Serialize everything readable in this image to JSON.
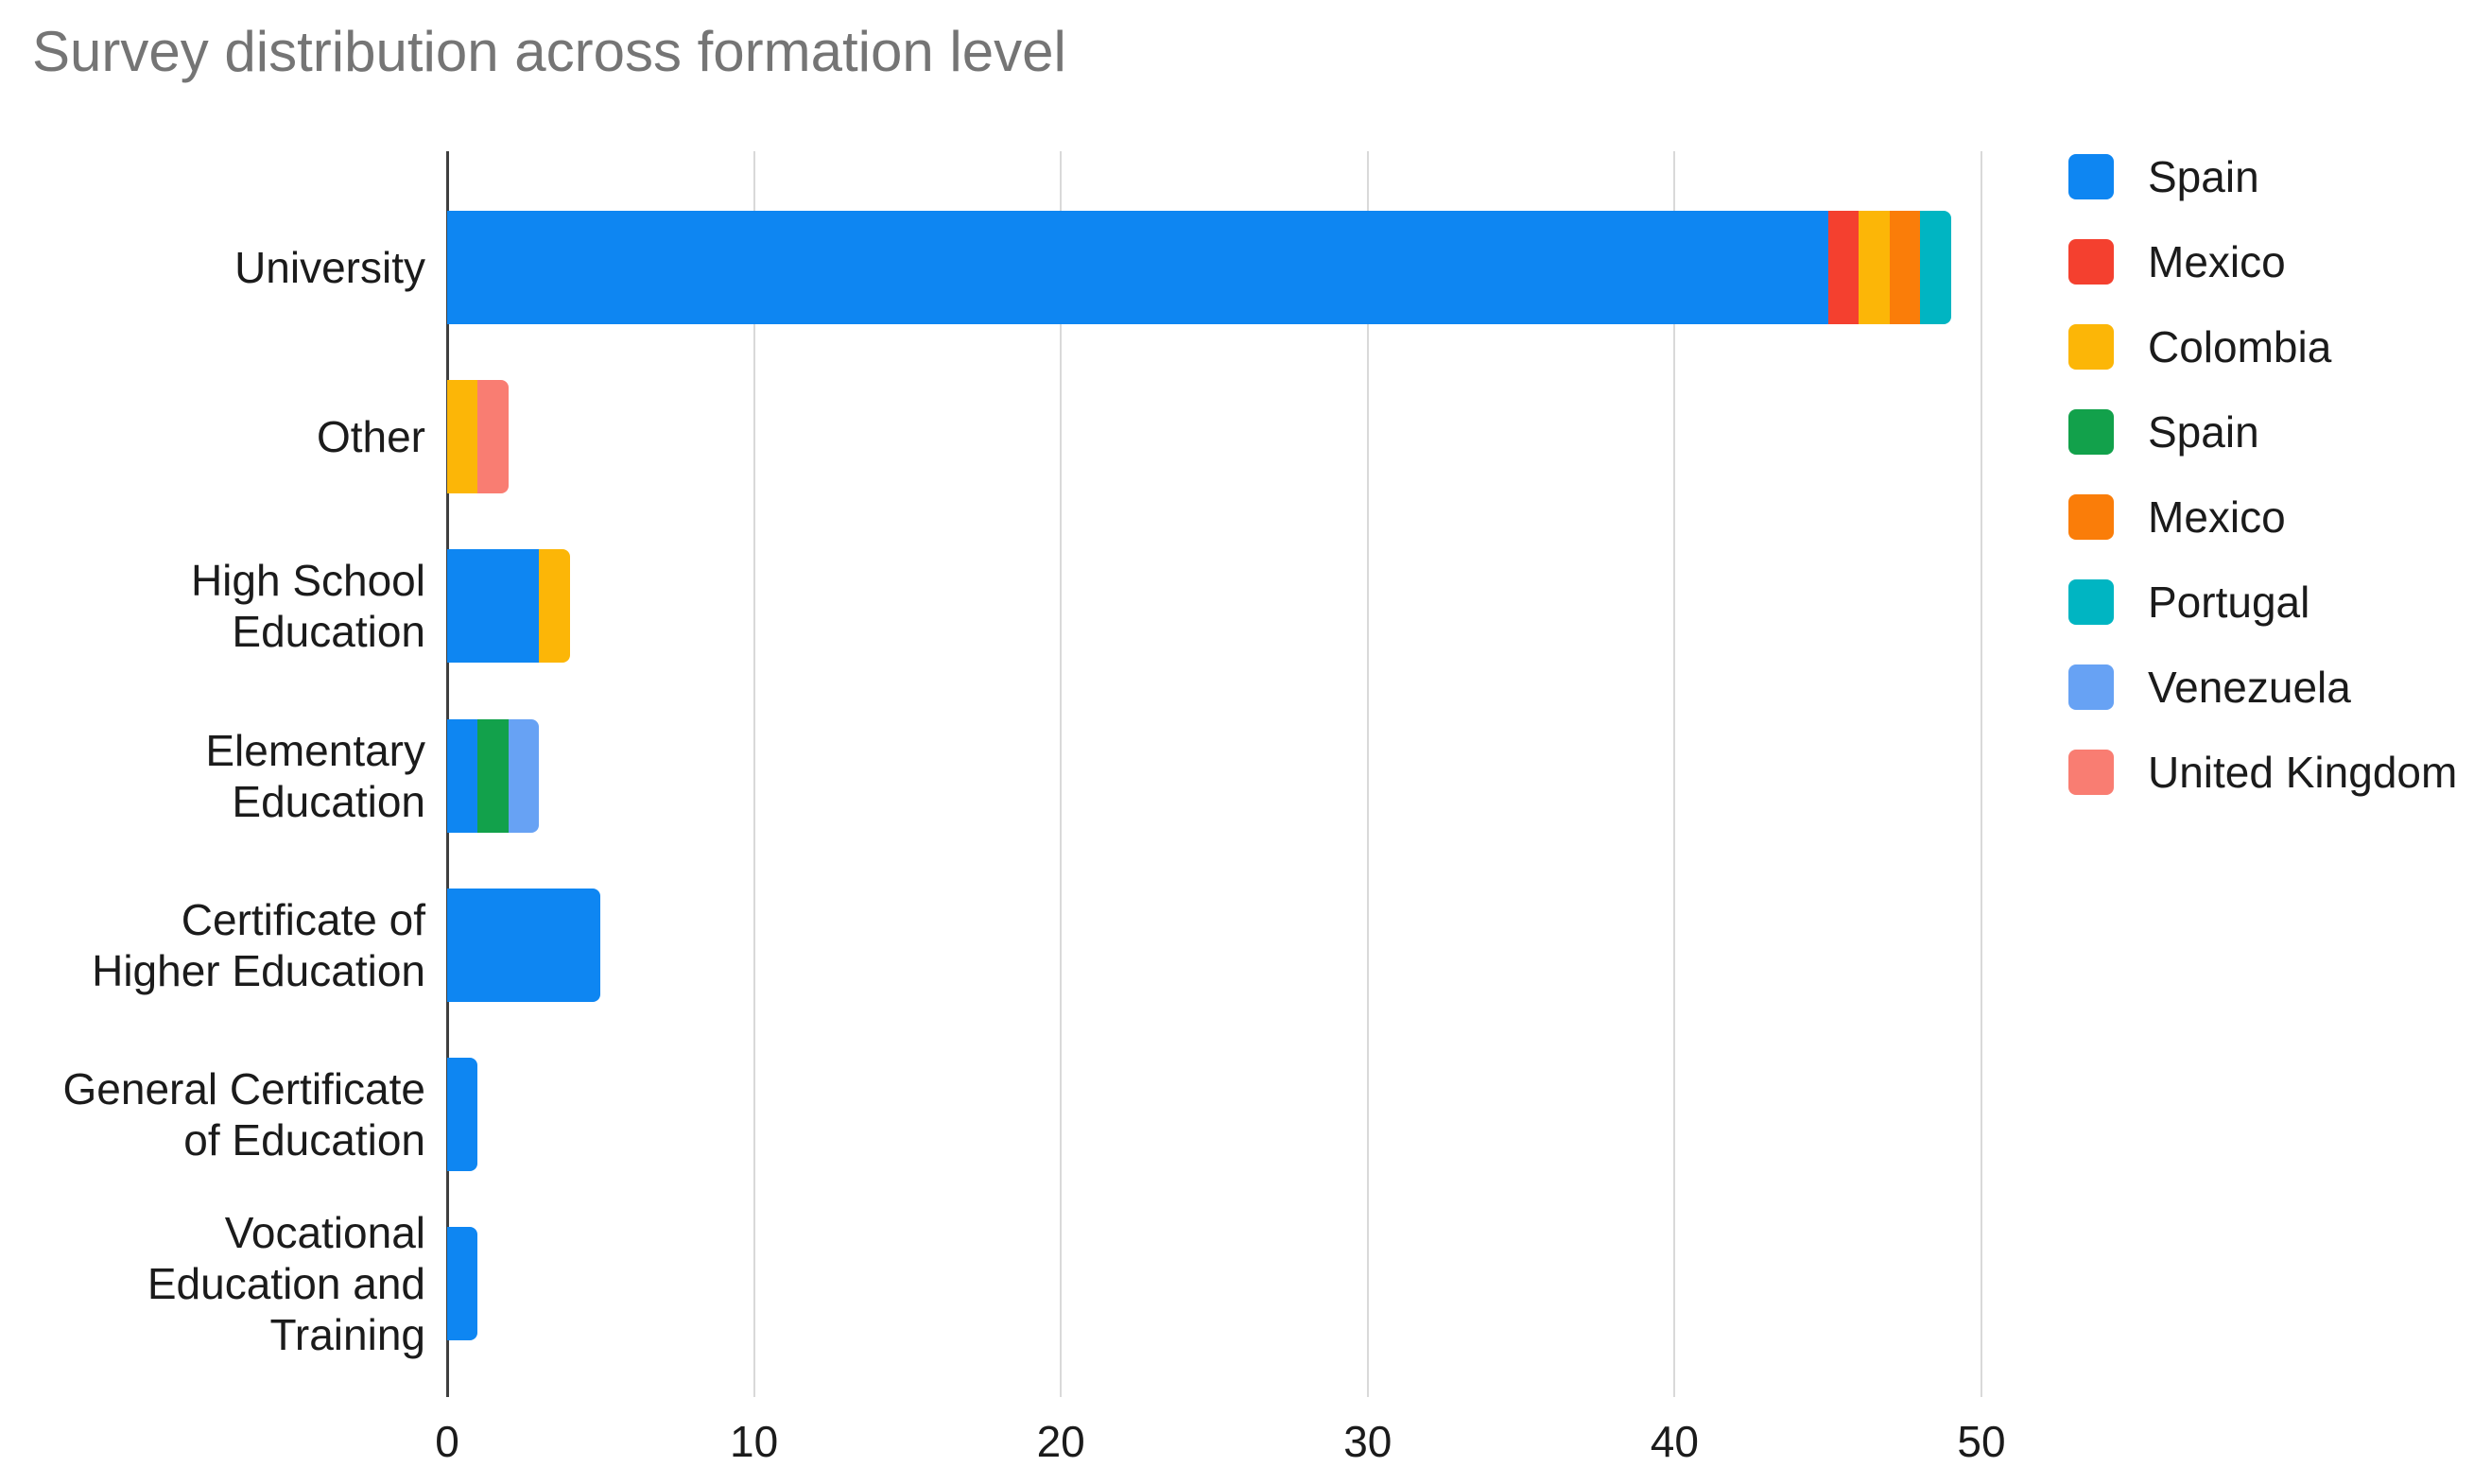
{
  "title": "Survey distribution across formation level",
  "colors": {
    "background": "#ffffff",
    "title_text": "#757575",
    "axis_line": "#3f3f3f",
    "gridline": "#d9d9d9",
    "label_text": "#1b1b1b"
  },
  "chart_data": {
    "type": "bar",
    "orientation": "horizontal",
    "stacked": true,
    "title": "Survey distribution across formation level",
    "xlabel": "",
    "ylabel": "",
    "grid": true,
    "legend_position": "right",
    "xlim": [
      0,
      52
    ],
    "x_ticks": [
      0,
      10,
      20,
      30,
      40,
      50
    ],
    "x_tick_labels": [
      "0",
      "10",
      "20",
      "30",
      "40",
      "50"
    ],
    "categories": [
      "University",
      "Other",
      "High School Education",
      "Elementary Education",
      "Certificate of Higher Education",
      "General Certificate of Education",
      "Vocational Education and Training"
    ],
    "category_label_lines": [
      [
        "University"
      ],
      [
        "Other"
      ],
      [
        "High School",
        "Education"
      ],
      [
        "Elementary",
        "Education"
      ],
      [
        "Certificate of",
        "Higher Education"
      ],
      [
        "General Certificate",
        "of Education"
      ],
      [
        "Vocational",
        "Education and",
        "Training"
      ]
    ],
    "series": [
      {
        "name": "Spain",
        "color": "#0e86f2",
        "values": [
          45,
          0,
          3,
          1,
          5,
          1,
          1
        ]
      },
      {
        "name": "Mexico",
        "color": "#f4402f",
        "values": [
          1,
          0,
          0,
          0,
          0,
          0,
          0
        ]
      },
      {
        "name": "Colombia",
        "color": "#fcb607",
        "values": [
          1,
          1,
          1,
          0,
          0,
          0,
          0
        ]
      },
      {
        "name": "Spain",
        "color": "#12a14b",
        "values": [
          0,
          0,
          0,
          1,
          0,
          0,
          0
        ]
      },
      {
        "name": "Mexico",
        "color": "#fa7d09",
        "values": [
          1,
          0,
          0,
          0,
          0,
          0,
          0
        ]
      },
      {
        "name": "Portugal",
        "color": "#00b5c2",
        "values": [
          1,
          0,
          0,
          0,
          0,
          0,
          0
        ]
      },
      {
        "name": "Venezuela",
        "color": "#67a2f4",
        "values": [
          0,
          0,
          0,
          1,
          0,
          0,
          0
        ]
      },
      {
        "name": "United Kingdom",
        "color": "#f97d72",
        "values": [
          0,
          1,
          0,
          0,
          0,
          0,
          0
        ]
      }
    ],
    "category_totals": [
      49,
      2,
      4,
      3,
      5,
      1,
      1
    ]
  }
}
